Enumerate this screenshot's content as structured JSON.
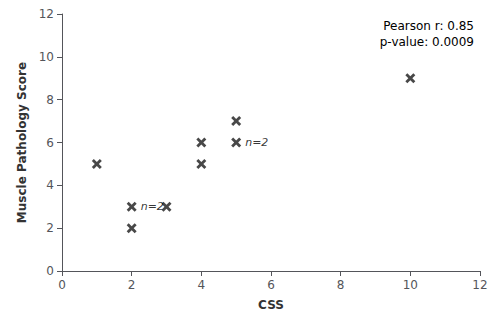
{
  "chart_data": {
    "type": "scatter",
    "x": [
      1,
      2,
      2,
      3,
      4,
      4,
      5,
      5,
      10
    ],
    "values": [
      5,
      3,
      2,
      3,
      6,
      5,
      7,
      6,
      9
    ],
    "xlabel": "CSS",
    "ylabel": "Muscle Pathology Score",
    "xlim": [
      0,
      12
    ],
    "ylim": [
      0,
      12
    ],
    "xticks": [
      0,
      2,
      4,
      6,
      8,
      10,
      12
    ],
    "yticks": [
      0,
      2,
      4,
      6,
      8,
      10,
      12
    ],
    "marker": "x",
    "color": "#1a1a1a",
    "grid": false,
    "annotations": [
      {
        "text": "n=2",
        "x": 2,
        "y": 3
      },
      {
        "text": "n=2",
        "x": 5,
        "y": 6
      },
      {
        "text": "Pearson r: 0.85\np-value: 0.0009"
      }
    ]
  }
}
